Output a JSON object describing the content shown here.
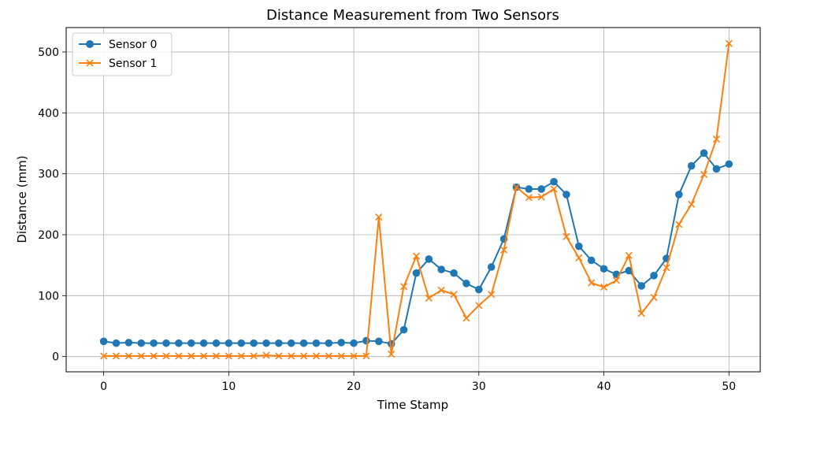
{
  "chart_data": {
    "type": "line",
    "title": "Distance Measurement from Two Sensors",
    "xlabel": "Time Stamp",
    "ylabel": "Distance (mm)",
    "xlim": [
      -3,
      52.5
    ],
    "ylim": [
      -25,
      540
    ],
    "xticks": [
      0,
      10,
      20,
      30,
      40,
      50
    ],
    "yticks": [
      0,
      100,
      200,
      300,
      400,
      500
    ],
    "grid": true,
    "legend_position": "top-left",
    "x": [
      0,
      1,
      2,
      3,
      4,
      5,
      6,
      7,
      8,
      9,
      10,
      11,
      12,
      13,
      14,
      15,
      16,
      17,
      18,
      19,
      20,
      21,
      22,
      23,
      24,
      25,
      26,
      27,
      28,
      29,
      30,
      31,
      32,
      33,
      34,
      35,
      36,
      37,
      38,
      39,
      40,
      41,
      42,
      43,
      44,
      45,
      46,
      47,
      48,
      49,
      50
    ],
    "series": [
      {
        "name": "Sensor 0",
        "color": "#1f77b4",
        "marker": "circle",
        "values": [
          25,
          22,
          23,
          22,
          22,
          22,
          22,
          22,
          22,
          22,
          22,
          22,
          22,
          22,
          22,
          22,
          22,
          22,
          22,
          23,
          22,
          26,
          25,
          21,
          44,
          137,
          160,
          143,
          137,
          120,
          110,
          147,
          193,
          278,
          275,
          275,
          287,
          266,
          181,
          158,
          144,
          135,
          141,
          116,
          133,
          161,
          266,
          313,
          334,
          308,
          316
        ]
      },
      {
        "name": "Sensor 1",
        "color": "#ff7f0e",
        "marker": "x",
        "values": [
          1,
          1,
          1,
          1,
          1,
          1,
          1,
          1,
          1,
          1,
          1,
          1,
          1,
          2,
          1,
          1,
          1,
          1,
          1,
          1,
          1,
          1,
          229,
          4,
          115,
          165,
          96,
          109,
          102,
          63,
          84,
          102,
          175,
          278,
          261,
          262,
          275,
          197,
          162,
          121,
          114,
          125,
          166,
          71,
          97,
          146,
          217,
          250,
          299,
          357,
          514
        ]
      }
    ]
  }
}
